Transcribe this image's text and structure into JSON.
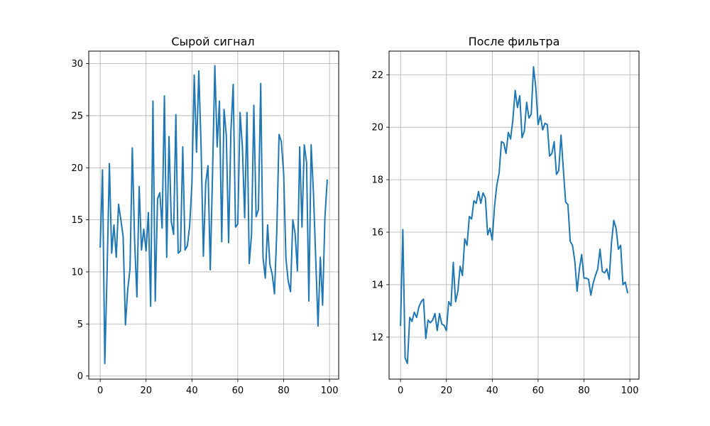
{
  "chart_data": [
    {
      "type": "line",
      "title": "Сырой сигнал",
      "xlabel": "",
      "ylabel": "",
      "xlim": [
        -5,
        104
      ],
      "ylim": [
        -0.3,
        31.2
      ],
      "xticks": [
        0,
        20,
        40,
        60,
        80,
        100
      ],
      "yticks": [
        0,
        5,
        10,
        15,
        20,
        25,
        30
      ],
      "grid": true,
      "series": [
        {
          "color": "#1f77b4",
          "x": [
            0,
            1,
            2,
            3,
            4,
            5,
            6,
            7,
            8,
            9,
            10,
            11,
            12,
            13,
            14,
            15,
            16,
            17,
            18,
            19,
            20,
            21,
            22,
            23,
            24,
            25,
            26,
            27,
            28,
            29,
            30,
            31,
            32,
            33,
            34,
            35,
            36,
            37,
            38,
            39,
            40,
            41,
            42,
            43,
            44,
            45,
            46,
            47,
            48,
            49,
            50,
            51,
            52,
            53,
            54,
            55,
            56,
            57,
            58,
            59,
            60,
            61,
            62,
            63,
            64,
            65,
            66,
            67,
            68,
            69,
            70,
            71,
            72,
            73,
            74,
            75,
            76,
            77,
            78,
            79,
            80,
            81,
            82,
            83,
            84,
            85,
            86,
            87,
            88,
            89,
            90,
            91,
            92,
            93,
            94,
            95,
            96,
            97,
            98,
            99
          ],
          "y": [
            12.4,
            19.8,
            1.2,
            10.0,
            20.4,
            11.8,
            14.5,
            11.4,
            16.5,
            15.0,
            13.4,
            4.9,
            8.3,
            10.3,
            21.9,
            13.0,
            7.6,
            18.2,
            12.1,
            14.1,
            12.0,
            15.7,
            6.7,
            26.4,
            7.2,
            17.0,
            17.6,
            14.2,
            26.9,
            11.4,
            23.0,
            14.8,
            13.6,
            25.1,
            11.8,
            12.0,
            22.0,
            12.1,
            12.5,
            14.4,
            18.5,
            28.9,
            21.5,
            29.3,
            22.0,
            11.5,
            18.5,
            20.2,
            10.2,
            19.5,
            29.8,
            22.0,
            26.4,
            12.9,
            25.6,
            23.1,
            12.8,
            23.5,
            28.0,
            14.3,
            14.6,
            25.3,
            22.0,
            15.2,
            25.3,
            10.8,
            13.6,
            26.0,
            15.3,
            16.0,
            28.1,
            11.4,
            9.4,
            14.5,
            10.7,
            9.8,
            7.9,
            13.8,
            23.2,
            22.5,
            19.5,
            11.3,
            9.1,
            8.1,
            15.0,
            13.7,
            10.1,
            22.0,
            14.3,
            22.2,
            20.5,
            7.2,
            22.2,
            17.6,
            11.2,
            4.8,
            11.4,
            6.8,
            15.2,
            18.8
          ]
        }
      ]
    },
    {
      "type": "line",
      "title": "После фильтра",
      "xlabel": "",
      "ylabel": "",
      "xlim": [
        -5,
        104
      ],
      "ylim": [
        10.4,
        22.9
      ],
      "xticks": [
        0,
        20,
        40,
        60,
        80,
        100
      ],
      "yticks": [
        12,
        14,
        16,
        18,
        20,
        22
      ],
      "grid": true,
      "series": [
        {
          "color": "#1f77b4",
          "x": [
            0,
            1,
            2,
            3,
            4,
            5,
            6,
            7,
            8,
            9,
            10,
            11,
            12,
            13,
            14,
            15,
            16,
            17,
            18,
            19,
            20,
            21,
            22,
            23,
            24,
            25,
            26,
            27,
            28,
            29,
            30,
            31,
            32,
            33,
            34,
            35,
            36,
            37,
            38,
            39,
            40,
            41,
            42,
            43,
            44,
            45,
            46,
            47,
            48,
            49,
            50,
            51,
            52,
            53,
            54,
            55,
            56,
            57,
            58,
            59,
            60,
            61,
            62,
            63,
            64,
            65,
            66,
            67,
            68,
            69,
            70,
            71,
            72,
            73,
            74,
            75,
            76,
            77,
            78,
            79,
            80,
            81,
            82,
            83,
            84,
            85,
            86,
            87,
            88,
            89,
            90,
            91,
            92,
            93,
            94,
            95,
            96,
            97,
            98,
            99
          ],
          "y": [
            12.45,
            16.1,
            11.2,
            11.0,
            12.75,
            12.6,
            12.95,
            12.75,
            13.15,
            13.35,
            13.45,
            11.95,
            12.65,
            12.55,
            12.65,
            12.9,
            12.25,
            12.9,
            12.5,
            12.45,
            12.25,
            13.35,
            13.2,
            14.85,
            13.35,
            13.75,
            14.7,
            14.35,
            15.75,
            15.5,
            16.6,
            16.5,
            17.2,
            17.1,
            17.55,
            17.1,
            17.5,
            17.3,
            15.9,
            16.15,
            15.7,
            17.0,
            17.8,
            18.25,
            19.45,
            19.4,
            19.0,
            19.8,
            19.55,
            20.3,
            21.4,
            20.75,
            21.2,
            19.6,
            19.85,
            20.95,
            20.35,
            20.5,
            22.3,
            21.5,
            20.1,
            20.45,
            19.9,
            20.15,
            20.1,
            18.9,
            19.0,
            19.45,
            18.2,
            18.35,
            19.7,
            18.4,
            17.15,
            17.05,
            15.65,
            15.5,
            14.9,
            13.75,
            14.6,
            15.15,
            14.25,
            14.25,
            14.2,
            13.6,
            14.05,
            14.35,
            14.6,
            15.35,
            14.5,
            14.45,
            14.6,
            14.2,
            15.6,
            16.45,
            16.15,
            15.35,
            15.5,
            14.0,
            14.1,
            13.7
          ]
        }
      ]
    }
  ]
}
